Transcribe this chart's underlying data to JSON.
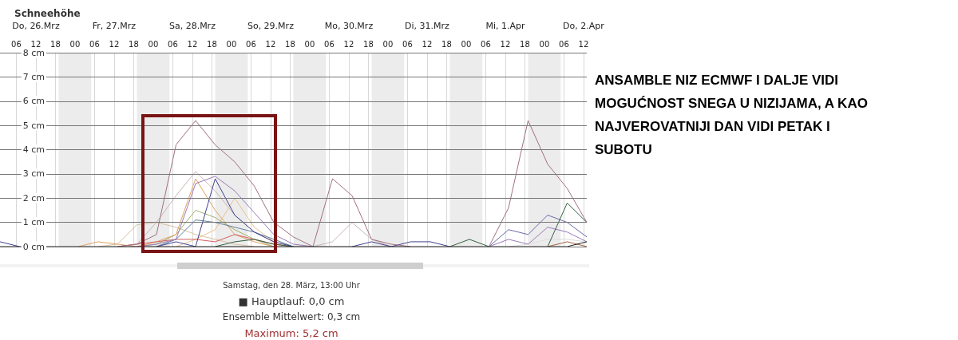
{
  "chart_data": {
    "type": "line",
    "title": "Schneehöhe",
    "annotations": [
      "ANSAMBLE NIZ ECMWF I DALJE VIDI MOGUĆNOST SNEGA U NIZIJAMA, A KAO NAJVEROVATNIJI DAN VIDI PETAK I SUBOTU",
      "Samstag, den 28. März, 13:00 Uhr",
      "■ Hauptlauf: 0,0 cm",
      "Ensemble Mittelwert: 0,3 cm",
      "Maximum: 5,2 cm"
    ],
    "x": [
      "--03-26T01:00",
      "--03-26T07:00",
      "--03-26T13:00",
      "--03-26T19:00",
      "--03-27T01:00",
      "--03-27T07:00",
      "--03-27T13:00",
      "--03-27T19:00",
      "--03-28T01:00",
      "--03-28T07:00",
      "--03-28T13:00",
      "--03-28T19:00",
      "--03-29T01:00",
      "--03-29T07:00",
      "--03-29T13:00",
      "--03-29T19:00",
      "--03-30T01:00",
      "--03-30T07:00",
      "--03-30T13:00",
      "--03-30T19:00",
      "--03-31T01:00",
      "--03-31T07:00",
      "--03-31T13:00",
      "--03-31T19:00",
      "--04-01T01:00",
      "--04-01T07:00",
      "--04-01T13:00",
      "--04-01T19:00",
      "--04-02T01:00",
      "--04-02T07:00",
      "--04-02T13:00"
    ],
    "series": [
      {
        "color": "#dcdcdc",
        "values": [
          null,
          null,
          null,
          null,
          null,
          null,
          null,
          null,
          null,
          null,
          null,
          null,
          null,
          null,
          null,
          null,
          null,
          null,
          null,
          null,
          null,
          null,
          null,
          null,
          null,
          null,
          0,
          0.1,
          0.3,
          0.3,
          0.2
        ]
      },
      {
        "color": "#c8b4b4",
        "values": [
          null,
          null,
          null,
          null,
          null,
          null,
          0,
          0.1,
          1.0,
          2.1,
          3.1,
          2.3,
          1.3,
          0.6,
          0.2,
          0,
          0,
          0.2,
          1.0,
          0.3,
          0,
          null,
          null,
          null,
          null,
          null,
          null,
          null,
          null,
          null,
          null
        ]
      },
      {
        "color": "#d8c0a0",
        "values": [
          null,
          null,
          null,
          null,
          null,
          0,
          0.1,
          0.9,
          1.0,
          0.8,
          0.5,
          0.3,
          0.1,
          0,
          null,
          null,
          null,
          null,
          null,
          null,
          null,
          null,
          null,
          null,
          null,
          null,
          null,
          null,
          null,
          null,
          null
        ]
      },
      {
        "color": "#e8c090",
        "values": [
          null,
          null,
          null,
          null,
          null,
          null,
          null,
          null,
          null,
          0,
          0.3,
          0.7,
          2.0,
          0.8,
          0.2,
          0,
          null,
          null,
          null,
          null,
          null,
          null,
          null,
          null,
          null,
          null,
          null,
          null,
          null,
          null,
          null
        ]
      },
      {
        "color": "#a0b070",
        "values": [
          null,
          null,
          null,
          null,
          null,
          null,
          null,
          0,
          0.1,
          0.5,
          1.5,
          1.2,
          0.7,
          0.3,
          0,
          null,
          null,
          null,
          null,
          null,
          null,
          null,
          null,
          null,
          null,
          null,
          null,
          null,
          null,
          null,
          null
        ]
      },
      {
        "color": "#e0a060",
        "values": [
          null,
          null,
          null,
          null,
          0,
          0.2,
          0.1,
          0,
          0.2,
          0.5,
          2.8,
          1.5,
          0.5,
          0.2,
          0,
          null,
          null,
          null,
          null,
          null,
          null,
          null,
          null,
          null,
          null,
          null,
          null,
          null,
          null,
          null,
          null
        ]
      },
      {
        "color": "#d06060",
        "values": [
          null,
          null,
          null,
          null,
          null,
          null,
          0,
          0.1,
          0.2,
          0.3,
          0.3,
          0.2,
          0.5,
          0.3,
          0.1,
          0,
          null,
          null,
          null,
          null,
          null,
          null,
          null,
          null,
          null,
          null,
          null,
          null,
          null,
          null,
          null
        ]
      },
      {
        "color": "#6080a0",
        "values": [
          null,
          null,
          null,
          null,
          null,
          null,
          null,
          null,
          0,
          0.3,
          1.1,
          1.0,
          0.8,
          0.6,
          0.3,
          0,
          null,
          null,
          null,
          null,
          null,
          null,
          null,
          null,
          null,
          null,
          null,
          null,
          null,
          null,
          null
        ]
      },
      {
        "color": "#9a7ab8",
        "values": [
          null,
          null,
          null,
          null,
          null,
          null,
          null,
          0,
          0.1,
          0.3,
          2.6,
          2.9,
          2.3,
          1.4,
          0.5,
          0.1,
          0,
          null,
          null,
          null,
          null,
          null,
          null,
          null,
          null,
          0,
          0.3,
          0.1,
          0.8,
          0.6,
          0.2
        ]
      },
      {
        "color": "#6a6aaa",
        "values": [
          null,
          null,
          null,
          null,
          null,
          null,
          null,
          null,
          null,
          null,
          null,
          null,
          null,
          null,
          null,
          null,
          null,
          null,
          null,
          null,
          null,
          null,
          null,
          null,
          null,
          0,
          0.7,
          0.5,
          1.3,
          1.0,
          0.4
        ]
      },
      {
        "color": "#404090",
        "values": [
          0.2,
          0,
          null,
          null,
          null,
          null,
          null,
          null,
          0,
          0.2,
          0,
          2.8,
          1.3,
          0.6,
          0.2,
          0,
          null,
          null,
          0,
          0.2,
          0,
          0.2,
          0.2,
          0,
          null,
          null,
          null,
          null,
          null,
          null,
          null
        ]
      },
      {
        "color": "#306040",
        "values": [
          null,
          null,
          null,
          null,
          null,
          null,
          null,
          null,
          null,
          null,
          null,
          0,
          0.2,
          0.3,
          0.1,
          0,
          null,
          null,
          null,
          null,
          null,
          null,
          null,
          0,
          0.3,
          0,
          null,
          null,
          0,
          1.8,
          1.0
        ]
      },
      {
        "color": "#a06040",
        "values": [
          null,
          null,
          null,
          null,
          null,
          null,
          null,
          null,
          null,
          null,
          null,
          null,
          null,
          null,
          null,
          null,
          null,
          null,
          null,
          null,
          null,
          null,
          null,
          null,
          null,
          null,
          null,
          null,
          0,
          0.2,
          0
        ]
      },
      {
        "color": "#a07080",
        "values": [
          null,
          null,
          null,
          null,
          null,
          null,
          0,
          0.1,
          0.5,
          4.2,
          5.2,
          4.2,
          3.5,
          2.5,
          1.0,
          0.4,
          0,
          2.8,
          2.1,
          0.3,
          0.1,
          0,
          null,
          null,
          null,
          0,
          1.6,
          5.2,
          3.4,
          2.4,
          1.0
        ]
      },
      {
        "color": "#202020",
        "values": [
          0,
          0,
          0,
          0,
          0,
          0,
          0,
          0,
          0,
          0,
          0,
          0,
          0,
          0,
          0,
          0,
          0,
          0,
          0,
          0,
          0,
          0,
          0,
          0,
          0,
          0,
          0,
          0,
          0,
          0,
          0.2
        ]
      }
    ],
    "xlim": [
      "--03-26T01:00",
      "--04-02T13:00"
    ],
    "xticks": [
      {
        "value": "--03-26T06:00",
        "label": "06"
      },
      {
        "value": "--03-26T12:00",
        "label": "12"
      },
      {
        "value": "--03-26T18:00",
        "label": "18"
      },
      {
        "value": "--03-27T00:00",
        "label": "00"
      },
      {
        "value": "--03-27T06:00",
        "label": "06"
      },
      {
        "value": "--03-27T12:00",
        "label": "12"
      },
      {
        "value": "--03-27T18:00",
        "label": "18"
      },
      {
        "value": "--03-28T00:00",
        "label": "00"
      },
      {
        "value": "--03-28T06:00",
        "label": "06"
      },
      {
        "value": "--03-28T12:00",
        "label": "12"
      },
      {
        "value": "--03-28T18:00",
        "label": "18"
      },
      {
        "value": "--03-29T00:00",
        "label": "00"
      },
      {
        "value": "--03-29T06:00",
        "label": "06"
      },
      {
        "value": "--03-29T12:00",
        "label": "12"
      },
      {
        "value": "--03-29T18:00",
        "label": "18"
      },
      {
        "value": "--03-30T00:00",
        "label": "00"
      },
      {
        "value": "--03-30T06:00",
        "label": "06"
      },
      {
        "value": "--03-30T12:00",
        "label": "12"
      },
      {
        "value": "--03-30T18:00",
        "label": "18"
      },
      {
        "value": "--03-31T00:00",
        "label": "00"
      },
      {
        "value": "--03-31T06:00",
        "label": "06"
      },
      {
        "value": "--03-31T12:00",
        "label": "12"
      },
      {
        "value": "--03-31T18:00",
        "label": "18"
      },
      {
        "value": "--04-01T00:00",
        "label": "00"
      },
      {
        "value": "--04-01T06:00",
        "label": "06"
      },
      {
        "value": "--04-01T12:00",
        "label": "12"
      },
      {
        "value": "--04-01T18:00",
        "label": "18"
      },
      {
        "value": "--04-02T00:00",
        "label": "00"
      },
      {
        "value": "--04-02T06:00",
        "label": "06"
      },
      {
        "value": "--04-02T12:00",
        "label": "12"
      }
    ],
    "x2lim": [
      "--03-26T01:00",
      "--04-02T13:00"
    ],
    "x2ticks": [
      {
        "value": "--03-26T12:00",
        "label": "Do, 26.Mrz"
      },
      {
        "value": "--03-27T12:00",
        "label": "Fr, 27.Mrz"
      },
      {
        "value": "--03-28T12:00",
        "label": "Sa, 28.Mrz"
      },
      {
        "value": "--03-29T12:00",
        "label": "So, 29.Mrz"
      },
      {
        "value": "--03-30T12:00",
        "label": "Mo, 30.Mrz"
      },
      {
        "value": "--03-31T12:00",
        "label": "Di, 31.Mrz"
      },
      {
        "value": "--04-01T12:00",
        "label": "Mi, 1.Apr"
      },
      {
        "value": "--04-02T12:00",
        "label": "Do, 2.Apr"
      }
    ],
    "ylim": [
      0,
      8
    ],
    "yticks": [
      {
        "value": 0,
        "label": "0 cm"
      },
      {
        "value": 1,
        "label": "1 cm"
      },
      {
        "value": 2,
        "label": "2 cm"
      },
      {
        "value": 3,
        "label": "3 cm"
      },
      {
        "value": 4,
        "label": "4 cm"
      },
      {
        "value": 5,
        "label": "5 cm"
      },
      {
        "value": 6,
        "label": "6 cm"
      },
      {
        "value": 7,
        "label": "7 cm"
      },
      {
        "value": 8,
        "label": "8 cm"
      }
    ],
    "bands": [
      {
        "axis": "x",
        "from": "--03-26T19:00",
        "to": "--03-27T05:00",
        "color": "#ececec"
      },
      {
        "axis": "x",
        "from": "--03-27T19:00",
        "to": "--03-28T05:00",
        "color": "#ececec"
      },
      {
        "axis": "x",
        "from": "--03-28T19:00",
        "to": "--03-29T05:00",
        "color": "#ececec"
      },
      {
        "axis": "x",
        "from": "--03-29T19:00",
        "to": "--03-30T05:00",
        "color": "#ececec"
      },
      {
        "axis": "x",
        "from": "--03-30T19:00",
        "to": "--03-31T05:00",
        "color": "#ececec"
      },
      {
        "axis": "x",
        "from": "--03-31T19:00",
        "to": "--04-01T05:00",
        "color": "#ececec"
      },
      {
        "axis": "x",
        "from": "--04-01T19:00",
        "to": "--04-02T05:00",
        "color": "#ececec"
      }
    ],
    "grid": true,
    "marker": "none",
    "line_style": "solid"
  }
}
